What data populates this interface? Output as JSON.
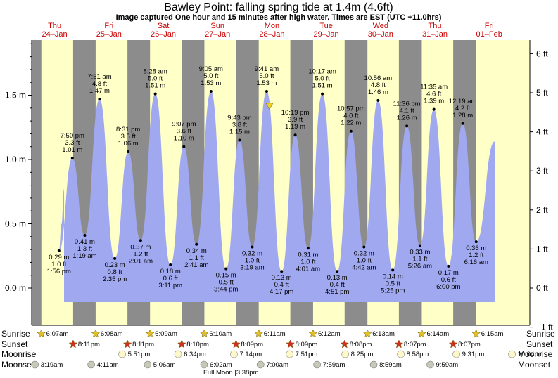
{
  "chart_data": {
    "type": "area",
    "title": "Bawley Point: falling  spring tide at 1.4m (4.6ft)",
    "subtitle": "Image captured One hour and 15 minutes after high water. Times are EST (UTC +11.0hrs)",
    "ylim": [
      -0.31,
      2.0
    ],
    "left_axis": {
      "unit": "m",
      "ticks": [
        0.0,
        0.5,
        1.0,
        1.5
      ],
      "labels": [
        "0.0 m",
        "0.5 m",
        "1.0 m",
        "1.5 m"
      ]
    },
    "right_axis": {
      "unit": "ft",
      "ticks": [
        -1,
        0,
        1,
        2,
        3,
        4,
        5,
        6
      ],
      "labels": [
        "−1 ft",
        "0 ft",
        "1 ft",
        "2 ft",
        "3 ft",
        "4 ft",
        "5 ft",
        "6 ft"
      ]
    },
    "days": [
      {
        "dow": "Thu",
        "date": "24–Jan"
      },
      {
        "dow": "Fri",
        "date": "25–Jan"
      },
      {
        "dow": "Sat",
        "date": "26–Jan"
      },
      {
        "dow": "Sun",
        "date": "27–Jan"
      },
      {
        "dow": "Mon",
        "date": "28–Jan"
      },
      {
        "dow": "Tue",
        "date": "29–Jan"
      },
      {
        "dow": "Wed",
        "date": "30–Jan"
      },
      {
        "dow": "Thu",
        "date": "31–Jan"
      },
      {
        "dow": "Fri",
        "date": "01–Feb"
      }
    ],
    "extrema": [
      {
        "type": "low",
        "day": 0,
        "time": "1:56 pm",
        "m": 0.29,
        "ft": 1.0,
        "m_label": "0.29 m",
        "ft_label": "1.0 ft",
        "time_label": "1:56 pm"
      },
      {
        "type": "high",
        "day": 0,
        "time": "7:50 pm",
        "m": 1.01,
        "ft": 3.3,
        "m_label": "1.01 m",
        "ft_label": "3.3 ft",
        "time_label": "7:50 pm"
      },
      {
        "type": "low",
        "day": 1,
        "time": "1:19 am",
        "m": 0.41,
        "ft": 1.3,
        "m_label": "0.41 m",
        "ft_label": "1.3 ft",
        "time_label": "1:19 am"
      },
      {
        "type": "high",
        "day": 1,
        "time": "7:51 am",
        "m": 1.47,
        "ft": 4.8,
        "m_label": "1.47 m",
        "ft_label": "4.8 ft",
        "time_label": "7:51 am"
      },
      {
        "type": "low",
        "day": 1,
        "time": "2:35 pm",
        "m": 0.23,
        "ft": 0.8,
        "m_label": "0.23 m",
        "ft_label": "0.8 ft",
        "time_label": "2:35 pm"
      },
      {
        "type": "high",
        "day": 1,
        "time": "8:31 pm",
        "m": 1.06,
        "ft": 3.5,
        "m_label": "1.06 m",
        "ft_label": "3.5 ft",
        "time_label": "8:31 pm"
      },
      {
        "type": "low",
        "day": 2,
        "time": "2:01 am",
        "m": 0.37,
        "ft": 1.2,
        "m_label": "0.37 m",
        "ft_label": "1.2 ft",
        "time_label": "2:01 am"
      },
      {
        "type": "high",
        "day": 2,
        "time": "8:28 am",
        "m": 1.51,
        "ft": 5.0,
        "m_label": "1.51 m",
        "ft_label": "5.0 ft",
        "time_label": "8:28 am"
      },
      {
        "type": "low",
        "day": 2,
        "time": "3:11 pm",
        "m": 0.18,
        "ft": 0.6,
        "m_label": "0.18 m",
        "ft_label": "0.6 ft",
        "time_label": "3:11 pm"
      },
      {
        "type": "high",
        "day": 2,
        "time": "9:07 pm",
        "m": 1.1,
        "ft": 3.6,
        "m_label": "1.10 m",
        "ft_label": "3.6 ft",
        "time_label": "9:07 pm"
      },
      {
        "type": "low",
        "day": 3,
        "time": "2:41 am",
        "m": 0.34,
        "ft": 1.1,
        "m_label": "0.34 m",
        "ft_label": "1.1 ft",
        "time_label": "2:41 am"
      },
      {
        "type": "high",
        "day": 3,
        "time": "9:05 am",
        "m": 1.53,
        "ft": 5.0,
        "m_label": "1.53 m",
        "ft_label": "5.0 ft",
        "time_label": "9:05 am"
      },
      {
        "type": "low",
        "day": 3,
        "time": "3:44 pm",
        "m": 0.15,
        "ft": 0.5,
        "m_label": "0.15 m",
        "ft_label": "0.5 ft",
        "time_label": "3:44 pm"
      },
      {
        "type": "high",
        "day": 3,
        "time": "9:43 pm",
        "m": 1.15,
        "ft": 3.8,
        "m_label": "1.15 m",
        "ft_label": "3.8 ft",
        "time_label": "9:43 pm"
      },
      {
        "type": "low",
        "day": 4,
        "time": "3:19 am",
        "m": 0.32,
        "ft": 1.0,
        "m_label": "0.32 m",
        "ft_label": "1.0 ft",
        "time_label": "3:19 am"
      },
      {
        "type": "high",
        "day": 4,
        "time": "9:41 am",
        "m": 1.53,
        "ft": 5.0,
        "m_label": "1.53 m",
        "ft_label": "5.0 ft",
        "time_label": "9:41 am"
      },
      {
        "type": "low",
        "day": 4,
        "time": "4:17 pm",
        "m": 0.13,
        "ft": 0.4,
        "m_label": "0.13 m",
        "ft_label": "0.4 ft",
        "time_label": "4:17 pm"
      },
      {
        "type": "high",
        "day": 4,
        "time": "10:19 pm",
        "m": 1.19,
        "ft": 3.9,
        "m_label": "1.19 m",
        "ft_label": "3.9 ft",
        "time_label": "10:19 pm"
      },
      {
        "type": "low",
        "day": 5,
        "time": "4:01 am",
        "m": 0.31,
        "ft": 1.0,
        "m_label": "0.31 m",
        "ft_label": "1.0 ft",
        "time_label": "4:01 am"
      },
      {
        "type": "high",
        "day": 5,
        "time": "10:17 am",
        "m": 1.51,
        "ft": 5.0,
        "m_label": "1.51 m",
        "ft_label": "5.0 ft",
        "time_label": "10:17 am"
      },
      {
        "type": "low",
        "day": 5,
        "time": "4:51 pm",
        "m": 0.13,
        "ft": 0.4,
        "m_label": "0.13 m",
        "ft_label": "0.4 ft",
        "time_label": "4:51 pm"
      },
      {
        "type": "high",
        "day": 5,
        "time": "10:57 pm",
        "m": 1.22,
        "ft": 4.0,
        "m_label": "1.22 m",
        "ft_label": "4.0 ft",
        "time_label": "10:57 pm"
      },
      {
        "type": "low",
        "day": 6,
        "time": "4:42 am",
        "m": 0.32,
        "ft": 1.0,
        "m_label": "0.32 m",
        "ft_label": "1.0 ft",
        "time_label": "4:42 am"
      },
      {
        "type": "high",
        "day": 6,
        "time": "10:56 am",
        "m": 1.46,
        "ft": 4.8,
        "m_label": "1.46 m",
        "ft_label": "4.8 ft",
        "time_label": "10:56 am"
      },
      {
        "type": "low",
        "day": 6,
        "time": "5:25 pm",
        "m": 0.14,
        "ft": 0.5,
        "m_label": "0.14 m",
        "ft_label": "0.5 ft",
        "time_label": "5:25 pm"
      },
      {
        "type": "high",
        "day": 6,
        "time": "11:36 pm",
        "m": 1.26,
        "ft": 4.1,
        "m_label": "1.26 m",
        "ft_label": "4.1 ft",
        "time_label": "11:36 pm"
      },
      {
        "type": "low",
        "day": 7,
        "time": "5:26 am",
        "m": 0.33,
        "ft": 1.1,
        "m_label": "0.33 m",
        "ft_label": "1.1 ft",
        "time_label": "5:26 am"
      },
      {
        "type": "high",
        "day": 7,
        "time": "11:35 am",
        "m": 1.39,
        "ft": 4.6,
        "m_label": "1.39 m",
        "ft_label": "4.6 ft",
        "time_label": "11:35 am"
      },
      {
        "type": "low",
        "day": 7,
        "time": "6:00 pm",
        "m": 0.17,
        "ft": 0.6,
        "m_label": "0.17 m",
        "ft_label": "0.6 ft",
        "time_label": "6:00 pm"
      },
      {
        "type": "high",
        "day": 8,
        "time": "12:19 am",
        "m": 1.28,
        "ft": 4.2,
        "m_label": "1.28 m",
        "ft_label": "4.2 ft",
        "time_label": "12:19 am"
      },
      {
        "type": "low",
        "day": 8,
        "time": "6:16 am",
        "m": 0.36,
        "ft": 1.2,
        "m_label": "0.36 m",
        "ft_label": "1.2 ft",
        "time_label": "6:16 am"
      }
    ],
    "current": {
      "day": 4,
      "time": "10:56 am",
      "m": 1.4,
      "ft": 4.6
    },
    "daylight": [
      {
        "day": 0,
        "sunrise": "6:07am",
        "sunset": "8:11pm"
      },
      {
        "day": 1,
        "sunrise": "6:08am",
        "sunset": "8:11pm"
      },
      {
        "day": 2,
        "sunrise": "6:09am",
        "sunset": "8:10pm"
      },
      {
        "day": 3,
        "sunrise": "6:10am",
        "sunset": "8:09pm"
      },
      {
        "day": 4,
        "sunrise": "6:11am",
        "sunset": "8:09pm"
      },
      {
        "day": 5,
        "sunrise": "6:12am",
        "sunset": "8:08pm"
      },
      {
        "day": 6,
        "sunrise": "6:13am",
        "sunset": "8:07pm"
      },
      {
        "day": 7,
        "sunrise": "6:14am",
        "sunset": "8:07pm"
      },
      {
        "day": 8,
        "sunrise": "6:15am",
        "sunset": ""
      }
    ],
    "moonrise": [
      {
        "day": 1,
        "time": "5:51pm"
      },
      {
        "day": 2,
        "time": "6:34pm"
      },
      {
        "day": 3,
        "time": "7:14pm"
      },
      {
        "day": 4,
        "time": "7:51pm"
      },
      {
        "day": 5,
        "time": "8:25pm"
      },
      {
        "day": 6,
        "time": "8:58pm"
      },
      {
        "day": 7,
        "time": "9:31pm"
      },
      {
        "day": 8,
        "time": "10:04pm"
      }
    ],
    "moonset": [
      {
        "day": 0,
        "time": "3:19am"
      },
      {
        "day": 1,
        "time": "4:11am"
      },
      {
        "day": 2,
        "time": "5:06am"
      },
      {
        "day": 3,
        "time": "6:02am"
      },
      {
        "day": 4,
        "time": "7:00am"
      },
      {
        "day": 5,
        "time": "7:59am"
      },
      {
        "day": 6,
        "time": "8:59am"
      },
      {
        "day": 7,
        "time": "9:59am"
      }
    ],
    "moon_phase": {
      "day": 3,
      "time": "3:38pm",
      "label": "Full Moon |3:38pm"
    },
    "rows": {
      "sunrise": "Sunrise",
      "sunset": "Sunset",
      "moonrise": "Moonrise",
      "moonset": "Moonset"
    },
    "colors": {
      "night": "#8c8c8c",
      "day": "#ffffc8",
      "water": "#a0a8f0",
      "day_label": "#cc0000",
      "sun_star": "#e0c030",
      "sunset_star": "#d03020",
      "moonrise": "#fff8c8",
      "moonset": "#c8c8b8",
      "marker": "#f0d020"
    }
  }
}
